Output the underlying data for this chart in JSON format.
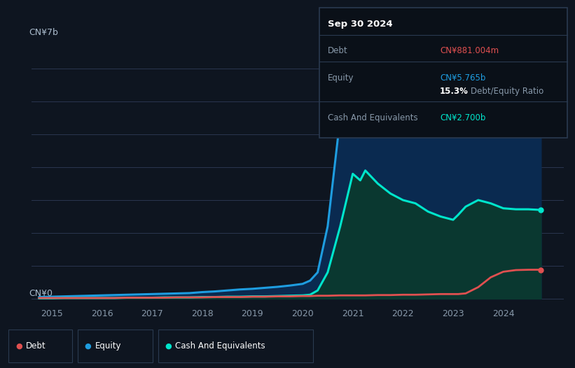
{
  "background_color": "#0e1520",
  "plot_bg_color": "#0e1520",
  "ylabel_top": "CN¥7b",
  "ylabel_bottom": "CN¥0",
  "x_ticks": [
    2015,
    2016,
    2017,
    2018,
    2019,
    2020,
    2021,
    2022,
    2023,
    2024
  ],
  "xlim": [
    2014.6,
    2025.2
  ],
  "ylim": [
    -0.15,
    7.8
  ],
  "grid_color": "#2a3550",
  "equity_color": "#1e9de0",
  "debt_color": "#e05050",
  "cash_color": "#00e5cc",
  "equity_fill": "#0a2a50",
  "cash_fill": "#0a3830",
  "debt_label": "Debt",
  "equity_label": "Equity",
  "cash_label": "Cash And Equivalents",
  "tooltip_title": "Sep 30 2024",
  "tooltip_debt_label": "Debt",
  "tooltip_debt_value": "CN¥881.004m",
  "tooltip_equity_label": "Equity",
  "tooltip_equity_value": "CN¥5.765b",
  "tooltip_ratio": "15.3%",
  "tooltip_ratio_text": "Debt/Equity Ratio",
  "tooltip_cash_label": "Cash And Equivalents",
  "tooltip_cash_value": "CN¥2.700b",
  "years": [
    2014.75,
    2015.0,
    2015.25,
    2015.5,
    2015.75,
    2016.0,
    2016.25,
    2016.5,
    2016.75,
    2017.0,
    2017.25,
    2017.5,
    2017.75,
    2018.0,
    2018.25,
    2018.5,
    2018.75,
    2019.0,
    2019.25,
    2019.5,
    2019.75,
    2020.0,
    2020.15,
    2020.3,
    2020.5,
    2020.75,
    2021.0,
    2021.15,
    2021.25,
    2021.5,
    2021.75,
    2022.0,
    2022.25,
    2022.5,
    2022.75,
    2023.0,
    2023.1,
    2023.25,
    2023.5,
    2023.75,
    2024.0,
    2024.25,
    2024.5,
    2024.75
  ],
  "equity_data": [
    0.05,
    0.06,
    0.07,
    0.08,
    0.09,
    0.1,
    0.11,
    0.12,
    0.13,
    0.14,
    0.15,
    0.16,
    0.17,
    0.2,
    0.22,
    0.25,
    0.28,
    0.3,
    0.33,
    0.36,
    0.4,
    0.45,
    0.55,
    0.8,
    2.2,
    5.5,
    6.8,
    7.0,
    6.9,
    6.7,
    6.55,
    6.7,
    6.4,
    6.1,
    5.85,
    5.6,
    5.7,
    5.8,
    5.8,
    5.78,
    5.78,
    5.77,
    5.77,
    5.765
  ],
  "debt_data": [
    0.02,
    0.02,
    0.02,
    0.02,
    0.02,
    0.02,
    0.02,
    0.03,
    0.03,
    0.03,
    0.03,
    0.04,
    0.04,
    0.04,
    0.05,
    0.05,
    0.05,
    0.06,
    0.06,
    0.07,
    0.07,
    0.08,
    0.08,
    0.09,
    0.09,
    0.1,
    0.1,
    0.1,
    0.1,
    0.11,
    0.11,
    0.12,
    0.12,
    0.13,
    0.14,
    0.14,
    0.14,
    0.16,
    0.35,
    0.65,
    0.82,
    0.87,
    0.88,
    0.881
  ],
  "cash_data": [
    0.01,
    0.01,
    0.02,
    0.02,
    0.02,
    0.02,
    0.02,
    0.03,
    0.03,
    0.03,
    0.04,
    0.04,
    0.04,
    0.05,
    0.05,
    0.06,
    0.06,
    0.07,
    0.07,
    0.08,
    0.09,
    0.1,
    0.12,
    0.25,
    0.8,
    2.2,
    3.8,
    3.6,
    3.9,
    3.5,
    3.2,
    3.0,
    2.9,
    2.65,
    2.5,
    2.4,
    2.55,
    2.8,
    3.0,
    2.9,
    2.75,
    2.72,
    2.72,
    2.7
  ]
}
